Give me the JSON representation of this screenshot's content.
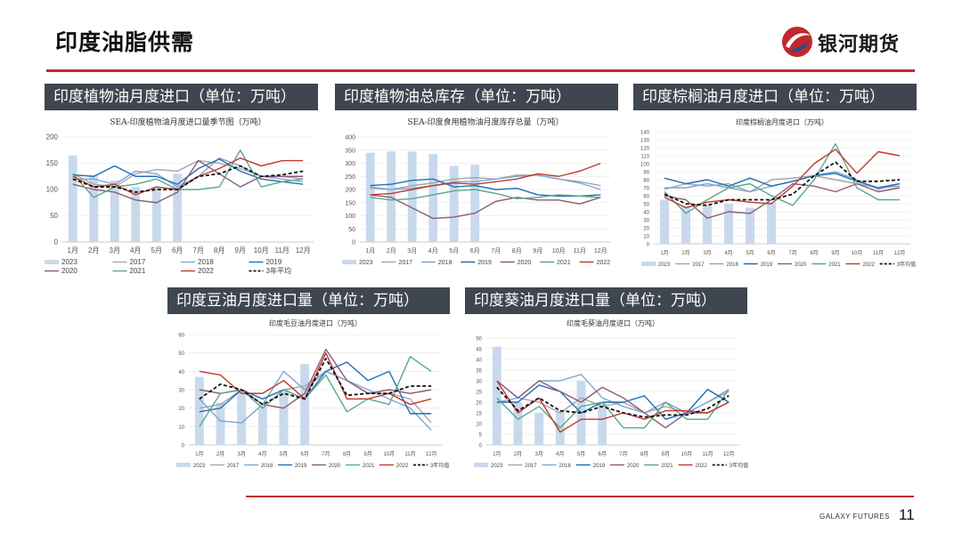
{
  "page": {
    "title": "印度油脂供需",
    "brand": "银河期货",
    "footer": "GALAXY FUTURES",
    "page_number": "11",
    "accent_color": "#c0282d"
  },
  "headers": [
    "印度植物油月度进口（单位：万吨）",
    "印度植物油总库存（单位：万吨）",
    "印度棕榈油月度进口（单位：万吨）",
    "印度豆油月度进口量（单位：万吨）",
    "印度葵油月度进口量（单位：万吨）"
  ],
  "chart_data": [
    {
      "type": "bar+line",
      "title": "SEA-印度植物油月度进口量季节图（万吨）",
      "categories": [
        "1月",
        "2月",
        "3月",
        "4月",
        "5月",
        "6月",
        "7月",
        "8月",
        "9月",
        "10月",
        "11月",
        "12月"
      ],
      "ylim": [
        0,
        200
      ],
      "yticks": [
        0,
        50,
        100,
        150,
        200
      ],
      "series": [
        {
          "name": "2023",
          "kind": "bar",
          "color": "#c9d9ec",
          "values": [
            165,
            127,
            117,
            105,
            105,
            130,
            null,
            null,
            null,
            null,
            null,
            null
          ]
        },
        {
          "name": "2017",
          "kind": "line",
          "color": "#a6a6a6",
          "values": [
            130,
            110,
            105,
            130,
            138,
            135,
            155,
            150,
            140,
            125,
            125,
            120
          ]
        },
        {
          "name": "2018",
          "kind": "line",
          "color": "#7ea6d3",
          "values": [
            120,
            120,
            110,
            135,
            130,
            105,
            125,
            160,
            145,
            125,
            120,
            115
          ]
        },
        {
          "name": "2019",
          "kind": "line",
          "color": "#1f6fb5",
          "values": [
            128,
            125,
            145,
            125,
            125,
            110,
            140,
            158,
            135,
            120,
            115,
            110
          ]
        },
        {
          "name": "2020",
          "kind": "line",
          "color": "#8b5a7a",
          "values": [
            110,
            100,
            95,
            80,
            75,
            95,
            155,
            130,
            105,
            125,
            125,
            125
          ]
        },
        {
          "name": "2021",
          "kind": "line",
          "color": "#5aa88b",
          "values": [
            130,
            85,
            105,
            110,
            120,
            100,
            100,
            105,
            175,
            105,
            115,
            120
          ]
        },
        {
          "name": "2022",
          "kind": "line",
          "color": "#c0392b",
          "values": [
            125,
            105,
            110,
            90,
            105,
            100,
            125,
            140,
            160,
            145,
            155,
            155
          ]
        },
        {
          "name": "3年平均",
          "kind": "dash",
          "color": "#111111",
          "values": [
            120,
            105,
            105,
            95,
            100,
            100,
            125,
            130,
            145,
            125,
            128,
            135
          ]
        }
      ]
    },
    {
      "type": "bar+line",
      "title": "SEA-印度食用植物油月度库存总量（万吨）",
      "categories": [
        "1月",
        "2月",
        "3月",
        "4月",
        "5月",
        "6月",
        "7月",
        "8月",
        "9月",
        "10月",
        "11月",
        "12月"
      ],
      "ylim": [
        0,
        400
      ],
      "yticks": [
        0,
        50,
        100,
        150,
        200,
        250,
        300,
        350,
        400
      ],
      "series": [
        {
          "name": "2023",
          "kind": "bar",
          "color": "#c9d9ec",
          "values": [
            340,
            345,
            345,
            335,
            290,
            295,
            null,
            null,
            null,
            null,
            null,
            null
          ]
        },
        {
          "name": "2017",
          "kind": "line",
          "color": "#a6a6a6",
          "values": [
            205,
            200,
            215,
            225,
            240,
            245,
            240,
            255,
            255,
            240,
            230,
            215
          ]
        },
        {
          "name": "2018",
          "kind": "line",
          "color": "#7ea6d3",
          "values": [
            210,
            200,
            205,
            215,
            230,
            230,
            240,
            250,
            255,
            240,
            225,
            200
          ]
        },
        {
          "name": "2019",
          "kind": "line",
          "color": "#1f6fb5",
          "values": [
            215,
            220,
            235,
            240,
            210,
            215,
            200,
            205,
            180,
            175,
            175,
            180
          ]
        },
        {
          "name": "2020",
          "kind": "line",
          "color": "#8b5a7a",
          "values": [
            180,
            170,
            130,
            90,
            95,
            110,
            155,
            170,
            160,
            160,
            145,
            170
          ]
        },
        {
          "name": "2021",
          "kind": "line",
          "color": "#5aa88b",
          "values": [
            170,
            160,
            165,
            180,
            195,
            200,
            185,
            165,
            170,
            180,
            175,
            170
          ]
        },
        {
          "name": "2022",
          "kind": "line",
          "color": "#c0392b",
          "values": [
            180,
            185,
            200,
            215,
            225,
            220,
            230,
            240,
            260,
            250,
            270,
            300
          ]
        }
      ]
    },
    {
      "type": "bar+line",
      "title": "印度棕榈油月度进口（万吨）",
      "categories": [
        "1月",
        "2月",
        "3月",
        "4月",
        "5月",
        "6月",
        "7月",
        "8月",
        "9月",
        "10月",
        "11月",
        "12月"
      ],
      "ylim": [
        0,
        140
      ],
      "yticks": [
        0,
        10,
        20,
        30,
        40,
        50,
        60,
        70,
        80,
        90,
        100,
        110,
        120,
        130,
        140
      ],
      "series": [
        {
          "name": "2023",
          "kind": "bar",
          "color": "#c9d9ec",
          "values": [
            55,
            48,
            48,
            50,
            45,
            52,
            null,
            null,
            null,
            null,
            null,
            null
          ]
        },
        {
          "name": "2017",
          "kind": "line",
          "color": "#a6a6a6",
          "values": [
            68,
            75,
            72,
            75,
            65,
            80,
            82,
            85,
            80,
            75,
            70,
            72
          ]
        },
        {
          "name": "2018",
          "kind": "line",
          "color": "#7ea6d3",
          "values": [
            70,
            70,
            75,
            70,
            65,
            72,
            78,
            85,
            90,
            80,
            68,
            75
          ]
        },
        {
          "name": "2019",
          "kind": "line",
          "color": "#1f6fb5",
          "values": [
            82,
            75,
            80,
            72,
            82,
            72,
            78,
            85,
            88,
            78,
            70,
            75
          ]
        },
        {
          "name": "2020",
          "kind": "line",
          "color": "#8b5a7a",
          "values": [
            60,
            55,
            32,
            40,
            38,
            55,
            75,
            72,
            65,
            75,
            65,
            70
          ]
        },
        {
          "name": "2021",
          "kind": "line",
          "color": "#5aa88b",
          "values": [
            65,
            38,
            55,
            70,
            75,
            60,
            48,
            80,
            125,
            70,
            55,
            55
          ]
        },
        {
          "name": "2022",
          "kind": "line",
          "color": "#c0392b",
          "values": [
            58,
            45,
            52,
            55,
            52,
            50,
            72,
            100,
            118,
            88,
            115,
            110
          ]
        },
        {
          "name": "3年均值",
          "kind": "dash",
          "color": "#111111",
          "values": [
            62,
            50,
            48,
            55,
            55,
            55,
            62,
            85,
            102,
            78,
            78,
            80
          ]
        }
      ]
    },
    {
      "type": "bar+line",
      "title": "印度毛豆油月度进口（万吨）",
      "categories": [
        "1月",
        "2月",
        "3月",
        "4月",
        "5月",
        "6月",
        "7月",
        "8月",
        "9月",
        "10月",
        "11月",
        "12月"
      ],
      "ylim": [
        0,
        60
      ],
      "yticks": [
        0,
        10,
        20,
        30,
        40,
        50,
        60
      ],
      "series": [
        {
          "name": "2023",
          "kind": "bar",
          "color": "#c9d9ec",
          "values": [
            37,
            23,
            30,
            21,
            30,
            44,
            null,
            null,
            null,
            null,
            null,
            null
          ]
        },
        {
          "name": "2017",
          "kind": "line",
          "color": "#a6a6a6",
          "values": [
            20,
            22,
            30,
            25,
            30,
            32,
            40,
            35,
            28,
            28,
            25,
            12
          ]
        },
        {
          "name": "2018",
          "kind": "line",
          "color": "#7ea6d3",
          "values": [
            25,
            13,
            12,
            22,
            40,
            30,
            40,
            35,
            30,
            25,
            20,
            8
          ]
        },
        {
          "name": "2019",
          "kind": "line",
          "color": "#1f6fb5",
          "values": [
            18,
            20,
            30,
            25,
            30,
            25,
            40,
            45,
            35,
            40,
            17,
            17
          ]
        },
        {
          "name": "2020",
          "kind": "line",
          "color": "#8b5a7a",
          "values": [
            30,
            28,
            30,
            22,
            20,
            28,
            52,
            35,
            28,
            30,
            28,
            30
          ]
        },
        {
          "name": "2021",
          "kind": "line",
          "color": "#5aa88b",
          "values": [
            10,
            28,
            30,
            20,
            30,
            25,
            38,
            18,
            25,
            22,
            48,
            40
          ]
        },
        {
          "name": "2022",
          "kind": "line",
          "color": "#c0392b",
          "values": [
            40,
            38,
            28,
            28,
            35,
            25,
            50,
            25,
            25,
            28,
            22,
            25
          ]
        },
        {
          "name": "3年均值",
          "kind": "dash",
          "color": "#111111",
          "values": [
            25,
            33,
            30,
            22,
            28,
            25,
            47,
            27,
            28,
            28,
            32,
            32
          ]
        }
      ]
    },
    {
      "type": "bar+line",
      "title": "印度毛葵油月度进口（万吨）",
      "categories": [
        "1月",
        "2月",
        "3月",
        "4月",
        "5月",
        "6月",
        "7月",
        "8月",
        "9月",
        "10月",
        "11月",
        "12月"
      ],
      "ylim": [
        0,
        50
      ],
      "yticks": [
        0,
        5,
        10,
        15,
        20,
        25,
        30,
        35,
        40,
        45,
        50
      ],
      "series": [
        {
          "name": "2023",
          "kind": "bar",
          "color": "#c9d9ec",
          "values": [
            46,
            20,
            15,
            16,
            30,
            20,
            null,
            null,
            null,
            null,
            null,
            null
          ]
        },
        {
          "name": "2017",
          "kind": "line",
          "color": "#a6a6a6",
          "values": [
            30,
            22,
            20,
            15,
            22,
            18,
            20,
            15,
            18,
            15,
            20,
            25
          ]
        },
        {
          "name": "2018",
          "kind": "line",
          "color": "#7ea6d3",
          "values": [
            20,
            22,
            30,
            30,
            33,
            22,
            18,
            15,
            20,
            15,
            20,
            26
          ]
        },
        {
          "name": "2019",
          "kind": "line",
          "color": "#1f6fb5",
          "values": [
            20,
            20,
            28,
            25,
            15,
            20,
            20,
            23,
            12,
            15,
            26,
            20
          ]
        },
        {
          "name": "2020",
          "kind": "line",
          "color": "#8b5a7a",
          "values": [
            30,
            22,
            30,
            25,
            20,
            27,
            22,
            15,
            8,
            15,
            15,
            20
          ]
        },
        {
          "name": "2021",
          "kind": "line",
          "color": "#5aa88b",
          "values": [
            22,
            12,
            18,
            8,
            18,
            20,
            8,
            8,
            20,
            12,
            12,
            26
          ]
        },
        {
          "name": "2022",
          "kind": "line",
          "color": "#c0392b",
          "values": [
            30,
            15,
            22,
            6,
            12,
            12,
            15,
            12,
            16,
            16,
            15,
            20
          ]
        },
        {
          "name": "3年均值",
          "kind": "dash",
          "color": "#111111",
          "values": [
            27,
            16,
            22,
            16,
            15,
            18,
            15,
            13,
            14,
            14,
            17,
            23
          ]
        }
      ]
    }
  ]
}
